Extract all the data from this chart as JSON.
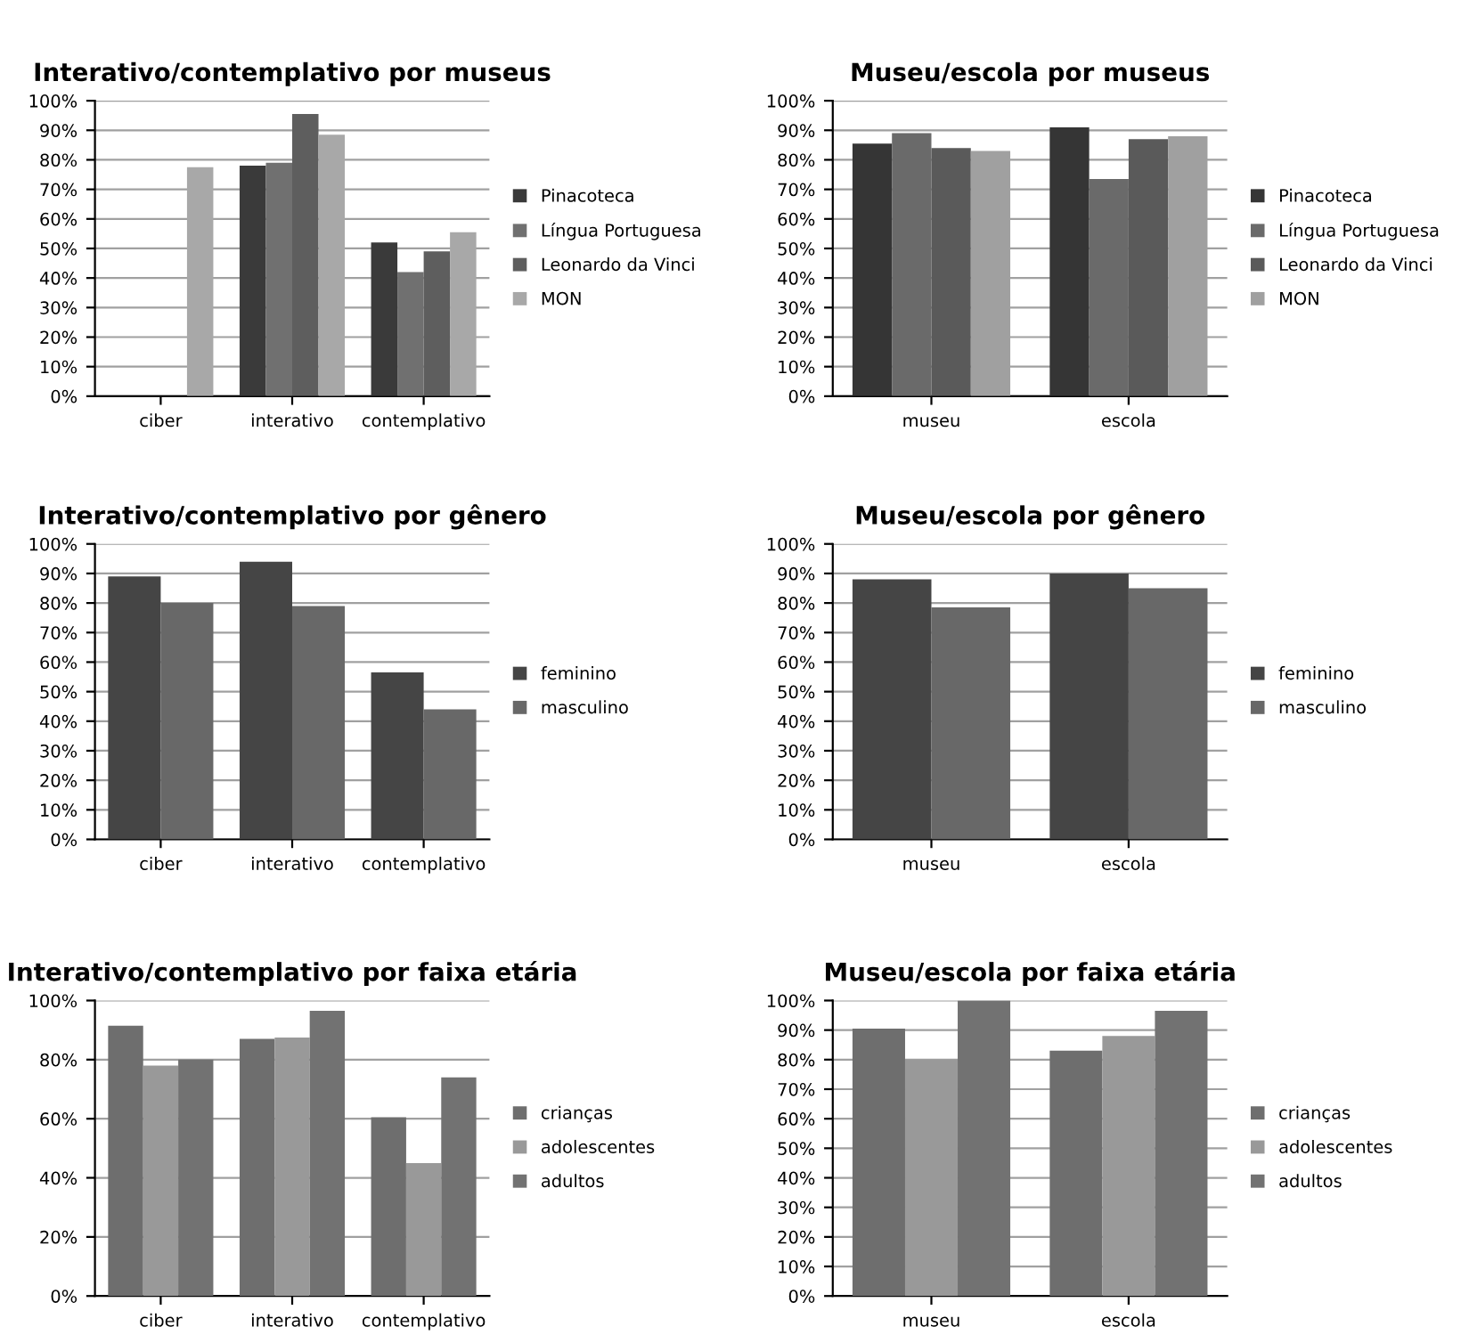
{
  "chart_data": [
    {
      "type": "bar",
      "title": "Interativo/contemplativo por museus",
      "categories": [
        "ciber",
        "interativo",
        "contemplativo"
      ],
      "series": [
        {
          "name": "Pinacoteca",
          "color": "#3a3a3a",
          "values": [
            null,
            78,
            52
          ]
        },
        {
          "name": "Língua Portuguesa",
          "color": "#707070",
          "values": [
            null,
            79,
            42
          ]
        },
        {
          "name": "Leonardo da Vinci",
          "color": "#5e5e5e",
          "values": [
            null,
            95.5,
            49
          ]
        },
        {
          "name": "MON",
          "color": "#a8a8a8",
          "values": [
            77.5,
            88.5,
            55.5
          ]
        }
      ],
      "ylim": [
        0,
        100
      ],
      "yticks": [
        {
          "value": 0,
          "label": "0%"
        },
        {
          "value": 10,
          "label": "10%"
        },
        {
          "value": 20,
          "label": "20%"
        },
        {
          "value": 30,
          "label": "30%"
        },
        {
          "value": 40,
          "label": "40%"
        },
        {
          "value": 50,
          "label": "50%"
        },
        {
          "value": 60,
          "label": "60%"
        },
        {
          "value": 70,
          "label": "70%"
        },
        {
          "value": 80,
          "label": "80%"
        },
        {
          "value": 90,
          "label": "90%"
        },
        {
          "value": 100,
          "label": "100%"
        }
      ],
      "grid": "y",
      "legend": "right"
    },
    {
      "type": "bar",
      "title": "Museu/escola por museus",
      "categories": [
        "museu",
        "escola"
      ],
      "series": [
        {
          "name": "Pinacoteca",
          "color": "#353535",
          "values": [
            85.5,
            91
          ]
        },
        {
          "name": "Língua Portuguesa",
          "color": "#6a6a6a",
          "values": [
            89,
            73.5
          ]
        },
        {
          "name": "Leonardo da Vinci",
          "color": "#5a5a5a",
          "values": [
            84,
            87
          ]
        },
        {
          "name": "MON",
          "color": "#a0a0a0",
          "values": [
            83,
            88
          ]
        }
      ],
      "ylim": [
        0,
        100
      ],
      "yticks": [
        {
          "value": 0,
          "label": "0%"
        },
        {
          "value": 10,
          "label": "10%"
        },
        {
          "value": 20,
          "label": "20%"
        },
        {
          "value": 30,
          "label": "30%"
        },
        {
          "value": 40,
          "label": "40%"
        },
        {
          "value": 50,
          "label": "50%"
        },
        {
          "value": 60,
          "label": "60%"
        },
        {
          "value": 70,
          "label": "70%"
        },
        {
          "value": 80,
          "label": "80%"
        },
        {
          "value": 90,
          "label": "90%"
        },
        {
          "value": 100,
          "label": "100%"
        }
      ],
      "grid": "y",
      "legend": "right"
    },
    {
      "type": "bar",
      "title": "Interativo/contemplativo por gênero",
      "categories": [
        "ciber",
        "interativo",
        "contemplativo"
      ],
      "series": [
        {
          "name": "feminino",
          "color": "#454545",
          "values": [
            89,
            94,
            56.5
          ]
        },
        {
          "name": "masculino",
          "color": "#686868",
          "values": [
            80,
            79,
            44
          ]
        }
      ],
      "ylim": [
        0,
        100
      ],
      "yticks": [
        {
          "value": 0,
          "label": "0%"
        },
        {
          "value": 10,
          "label": "10%"
        },
        {
          "value": 20,
          "label": "20%"
        },
        {
          "value": 30,
          "label": "30%"
        },
        {
          "value": 40,
          "label": "40%"
        },
        {
          "value": 50,
          "label": "50%"
        },
        {
          "value": 60,
          "label": "60%"
        },
        {
          "value": 70,
          "label": "70%"
        },
        {
          "value": 80,
          "label": "80%"
        },
        {
          "value": 90,
          "label": "90%"
        },
        {
          "value": 100,
          "label": "100%"
        }
      ],
      "grid": "y",
      "legend": "right"
    },
    {
      "type": "bar",
      "title": "Museu/escola por gênero",
      "categories": [
        "museu",
        "escola"
      ],
      "series": [
        {
          "name": "feminino",
          "color": "#454545",
          "values": [
            88,
            90
          ]
        },
        {
          "name": "masculino",
          "color": "#686868",
          "values": [
            78.5,
            85
          ]
        }
      ],
      "ylim": [
        0,
        100
      ],
      "yticks": [
        {
          "value": 0,
          "label": "0%"
        },
        {
          "value": 10,
          "label": "10%"
        },
        {
          "value": 20,
          "label": "20%"
        },
        {
          "value": 30,
          "label": "30%"
        },
        {
          "value": 40,
          "label": "40%"
        },
        {
          "value": 50,
          "label": "50%"
        },
        {
          "value": 60,
          "label": "60%"
        },
        {
          "value": 70,
          "label": "70%"
        },
        {
          "value": 80,
          "label": "80%"
        },
        {
          "value": 90,
          "label": "90%"
        },
        {
          "value": 100,
          "label": "100%"
        }
      ],
      "grid": "y",
      "legend": "right"
    },
    {
      "type": "bar",
      "title": "Interativo/contemplativo por faixa etária",
      "categories": [
        "ciber",
        "interativo",
        "contemplativo"
      ],
      "series": [
        {
          "name": "crianças",
          "color": "#6e6e6e",
          "values": [
            91.5,
            87,
            60.5
          ]
        },
        {
          "name": "adolescentes",
          "color": "#999999",
          "values": [
            78,
            87.5,
            45
          ]
        },
        {
          "name": "adultos",
          "color": "#727272",
          "values": [
            80,
            96.5,
            74
          ]
        }
      ],
      "ylim": [
        0,
        100
      ],
      "yticks": [
        {
          "value": 0,
          "label": "0%"
        },
        {
          "value": 20,
          "label": "20%"
        },
        {
          "value": 40,
          "label": "40%"
        },
        {
          "value": 60,
          "label": "60%"
        },
        {
          "value": 80,
          "label": "80%"
        },
        {
          "value": 100,
          "label": "100%"
        }
      ],
      "grid": "y",
      "legend": "right"
    },
    {
      "type": "bar",
      "title": "Museu/escola por faixa etária",
      "categories": [
        "museu",
        "escola"
      ],
      "series": [
        {
          "name": "crianças",
          "color": "#6e6e6e",
          "values": [
            90.5,
            83
          ]
        },
        {
          "name": "adolescentes",
          "color": "#999999",
          "values": [
            80,
            88
          ]
        },
        {
          "name": "adultos",
          "color": "#727272",
          "values": [
            100,
            96.5
          ]
        }
      ],
      "ylim": [
        0,
        100
      ],
      "yticks": [
        {
          "value": 0,
          "label": "0%"
        },
        {
          "value": 10,
          "label": "10%"
        },
        {
          "value": 20,
          "label": "20%"
        },
        {
          "value": 30,
          "label": "30%"
        },
        {
          "value": 40,
          "label": "40%"
        },
        {
          "value": 50,
          "label": "50%"
        },
        {
          "value": 60,
          "label": "60%"
        },
        {
          "value": 70,
          "label": "70%"
        },
        {
          "value": 80,
          "label": "80%"
        },
        {
          "value": 90,
          "label": "90%"
        },
        {
          "value": 100,
          "label": "100%"
        }
      ],
      "grid": "y",
      "legend": "right"
    }
  ]
}
